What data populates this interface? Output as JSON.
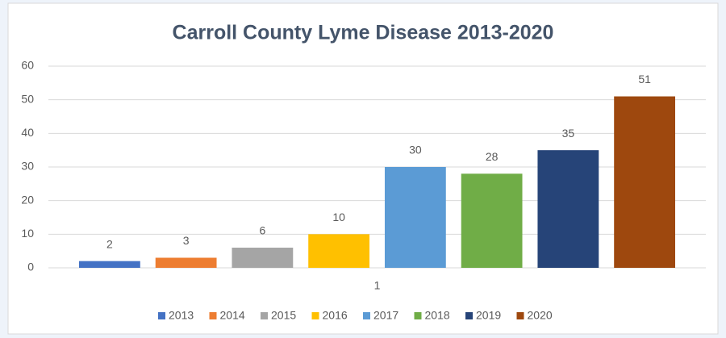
{
  "chart_data": {
    "type": "bar",
    "title": "Carroll County Lyme Disease 2013-2020",
    "categories": [
      "1"
    ],
    "series": [
      {
        "name": "2013",
        "color": "#4472c4",
        "values": [
          2
        ]
      },
      {
        "name": "2014",
        "color": "#ed7d31",
        "values": [
          3
        ]
      },
      {
        "name": "2015",
        "color": "#a5a5a5",
        "values": [
          6
        ]
      },
      {
        "name": "2016",
        "color": "#ffc000",
        "values": [
          10
        ]
      },
      {
        "name": "2017",
        "color": "#5b9bd5",
        "values": [
          30
        ]
      },
      {
        "name": "2018",
        "color": "#70ad47",
        "values": [
          28
        ]
      },
      {
        "name": "2019",
        "color": "#264478",
        "values": [
          35
        ]
      },
      {
        "name": "2020",
        "color": "#9e480e",
        "values": [
          51
        ]
      }
    ],
    "ylim": [
      0,
      60
    ],
    "yticks": [
      0,
      10,
      20,
      30,
      40,
      50,
      60
    ],
    "grid": true,
    "legend": "bottom"
  }
}
